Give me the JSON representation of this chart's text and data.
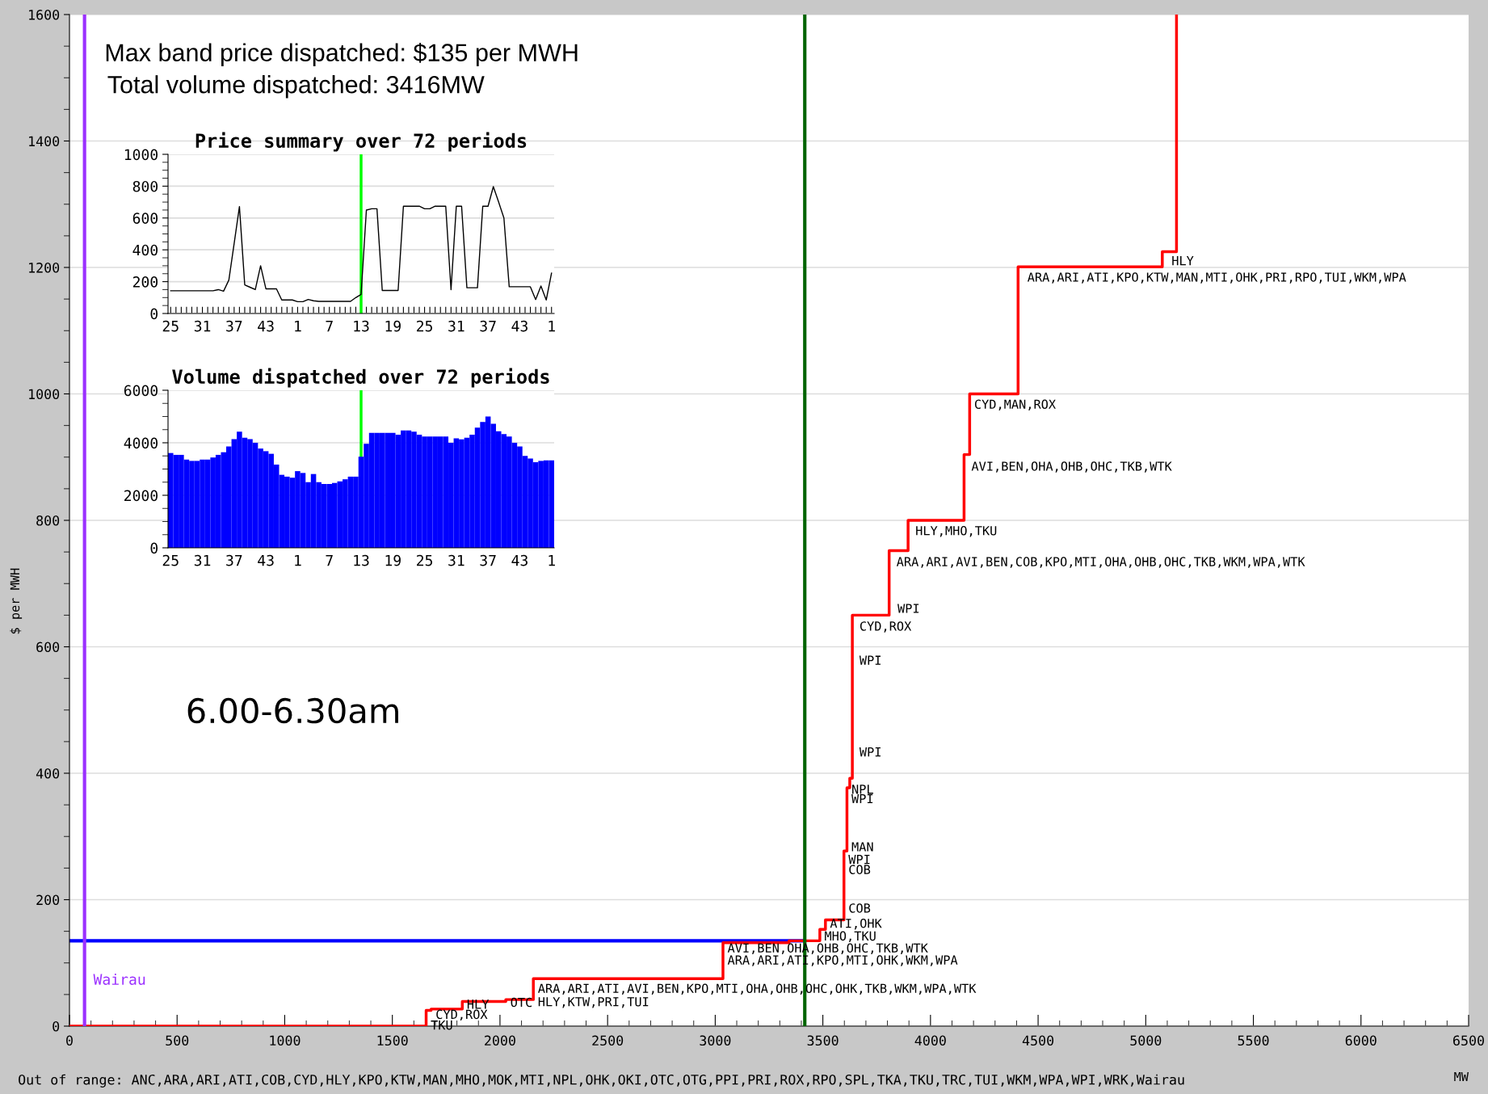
{
  "chart_data": [
    {
      "type": "step",
      "ylabel": "$ per MWH",
      "xlabel": "MW",
      "xlim": [
        0,
        6500
      ],
      "xticks": [
        0,
        500,
        1000,
        1500,
        2000,
        2500,
        3000,
        3500,
        4000,
        4500,
        5000,
        5500,
        6000,
        6500
      ],
      "ylim": [
        0,
        1600
      ],
      "yticks": [
        0,
        200,
        400,
        600,
        800,
        1000,
        1200,
        1400,
        1600
      ],
      "grid": "y",
      "series": [
        {
          "color": "#ff0000",
          "x": [
            0,
            1657,
            1680,
            1825,
            2027,
            2155,
            3036,
            3343,
            3486,
            3512,
            3598,
            3612,
            3625,
            3637,
            3808,
            3896,
            4156,
            4182,
            4407,
            5077,
            5143
          ],
          "values": [
            0,
            25,
            27,
            39,
            42,
            75,
            132,
            135,
            153,
            168,
            277,
            377,
            392,
            650,
            752,
            800,
            904,
            1000,
            1201,
            1225,
            1600
          ]
        }
      ],
      "ref_lines": [
        {
          "axis": "y",
          "value": 135,
          "color": "#0000ff"
        },
        {
          "axis": "x",
          "value": 3416,
          "color": "#006400"
        },
        {
          "axis": "x",
          "value": 70,
          "label": "Wairau",
          "color": "#9b30ff"
        }
      ],
      "annotations": [
        "Max band price dispatched: $135 per MWH",
        "Total volume dispatched: 3416MW",
        "6.00-6.30am",
        "Out of range: ANC,ARA,ARI,ATI,COB,CYD,HLY,KPO,KTW,MAN,MHO,MOK,MTI,NPL,OHK,OKI,OTC,OTG,PPI,PRI,ROX,RPO,SPL,TKA,TKU,TRC,TUI,WKM,WPA,WPI,WRK,Wairau",
        {
          "text": "HLY",
          "x": 5099,
          "y": 1209
        },
        {
          "text": "ARA,ARI,ATI,KPO,KTW,MAN,MTI,OHK,PRI,RPO,TUI,WKM,WPA",
          "x": 4429,
          "y": 1183
        },
        {
          "text": "CYD,MAN,ROX",
          "x": 4182,
          "y": 982
        },
        {
          "text": "AVI,BEN,OHA,OHB,OHC,TKB,WTK",
          "x": 4169,
          "y": 884
        },
        {
          "text": "HLY,MHO,TKU",
          "x": 3909,
          "y": 782
        },
        {
          "text": "ARA,ARI,AVI,BEN,COB,KPO,MTI,OHA,OHB,OHC,TKB,WKM,WPA,WTK",
          "x": 3821,
          "y": 733
        },
        {
          "text": "WPI",
          "x": 3826,
          "y": 659
        },
        {
          "text": "CYD,ROX",
          "x": 3649,
          "y": 631
        },
        {
          "text": "WPI",
          "x": 3649,
          "y": 577
        },
        {
          "text": "WPI",
          "x": 3649,
          "y": 432
        },
        {
          "text": "NPL",
          "x": 3612,
          "y": 373
        },
        {
          "text": "WPI",
          "x": 3612,
          "y": 358
        },
        {
          "text": "MAN",
          "x": 3612,
          "y": 282
        },
        {
          "text": "WPI",
          "x": 3598,
          "y": 262
        },
        {
          "text": "COB",
          "x": 3598,
          "y": 246
        },
        {
          "text": "COB",
          "x": 3598,
          "y": 185
        },
        {
          "text": "ATI,OHK",
          "x": 3512,
          "y": 161
        },
        {
          "text": "MHO,TKU",
          "x": 3486,
          "y": 141
        },
        {
          "text": "AVI,BEN,OHA,OHB,OHC,TKB,WTK",
          "x": 3036,
          "y": 122
        },
        {
          "text": "ARA,ARI,ATI,KPO,MTI,OHK,WKM,WPA",
          "x": 3036,
          "y": 103
        },
        {
          "text": "ARA,ARI,ATI,AVI,BEN,KPO,MTI,OHA,OHB,OHC,OHK,TKB,WKM,WPA,WTK",
          "x": 2155,
          "y": 58
        },
        {
          "text": "HLY,KTW,PRI,TUI",
          "x": 2155,
          "y": 37
        },
        {
          "text": "OTC",
          "x": 2027,
          "y": 36
        },
        {
          "text": "HLY",
          "x": 1825,
          "y": 33
        },
        {
          "text": "CYD,ROX",
          "x": 1680,
          "y": 17
        },
        {
          "text": "TKU",
          "x": 1657,
          "y": 0
        }
      ]
    },
    {
      "type": "line",
      "title": "Price summary over 72 periods",
      "categories": [
        "25",
        null,
        null,
        null,
        null,
        null,
        "31",
        null,
        null,
        null,
        null,
        null,
        "37",
        null,
        null,
        null,
        null,
        null,
        "43",
        null,
        null,
        null,
        null,
        null,
        "1",
        null,
        null,
        null,
        null,
        null,
        "7",
        null,
        null,
        null,
        null,
        null,
        "13",
        null,
        null,
        null,
        null,
        null,
        "19",
        null,
        null,
        null,
        null,
        null,
        "25",
        null,
        null,
        null,
        null,
        null,
        "31",
        null,
        null,
        null,
        null,
        null,
        "37",
        null,
        null,
        null,
        null,
        null,
        "43",
        null,
        null,
        null,
        null,
        null,
        "1"
      ],
      "ylim": [
        0,
        1000
      ],
      "yticks": [
        0,
        200,
        400,
        600,
        800,
        1000
      ],
      "grid": "y",
      "series": [
        {
          "color": "#000000",
          "values": [
            143,
            143,
            143,
            143,
            143,
            143,
            143,
            143,
            143,
            150,
            140,
            210,
            440,
            672,
            180,
            165,
            150,
            300,
            155,
            155,
            155,
            85,
            85,
            85,
            74,
            74,
            88,
            80,
            76,
            76,
            76,
            76,
            76,
            76,
            76,
            100,
            120,
            650,
            658,
            658,
            145,
            145,
            145,
            145,
            674,
            674,
            674,
            674,
            658,
            658,
            674,
            674,
            674,
            150,
            674,
            674,
            162,
            162,
            162,
            674,
            674,
            797,
            700,
            600,
            168,
            168,
            168,
            168,
            168,
            88,
            173,
            85,
            254
          ]
        }
      ],
      "ref_lines": [
        {
          "axis": "x",
          "value": "13",
          "color": "#00ff00"
        }
      ]
    },
    {
      "type": "bar",
      "title": "Volume dispatched over 72 periods",
      "categories": [
        "25",
        null,
        null,
        null,
        null,
        null,
        "31",
        null,
        null,
        null,
        null,
        null,
        "37",
        null,
        null,
        null,
        null,
        null,
        "43",
        null,
        null,
        null,
        null,
        null,
        "1",
        null,
        null,
        null,
        null,
        null,
        "7",
        null,
        null,
        null,
        null,
        null,
        "13",
        null,
        null,
        null,
        null,
        null,
        "19",
        null,
        null,
        null,
        null,
        null,
        "25",
        null,
        null,
        null,
        null,
        null,
        "31",
        null,
        null,
        null,
        null,
        null,
        "37",
        null,
        null,
        null,
        null,
        null,
        "43",
        null,
        null,
        null,
        null,
        null,
        "1"
      ],
      "ylim": [
        0,
        6000
      ],
      "yticks": [
        0,
        2000,
        4000,
        6000
      ],
      "grid": "y",
      "series": [
        {
          "color": "#0000ff",
          "values": [
            3610,
            3540,
            3540,
            3360,
            3310,
            3310,
            3360,
            3360,
            3440,
            3540,
            3640,
            3860,
            4140,
            4420,
            4190,
            4140,
            4000,
            3780,
            3680,
            3580,
            3170,
            2780,
            2710,
            2670,
            2920,
            2850,
            2500,
            2810,
            2500,
            2430,
            2430,
            2470,
            2530,
            2610,
            2710,
            2710,
            3470,
            3960,
            4380,
            4380,
            4380,
            4380,
            4380,
            4310,
            4470,
            4470,
            4420,
            4310,
            4240,
            4240,
            4240,
            4240,
            4240,
            4000,
            4170,
            4130,
            4190,
            4310,
            4580,
            4790,
            5000,
            4720,
            4440,
            4330,
            4240,
            4000,
            3860,
            3500,
            3400,
            3260,
            3310,
            3330,
            3330
          ]
        }
      ],
      "ref_lines": [
        {
          "axis": "x",
          "value": "13",
          "color": "#00ff00"
        }
      ]
    }
  ]
}
